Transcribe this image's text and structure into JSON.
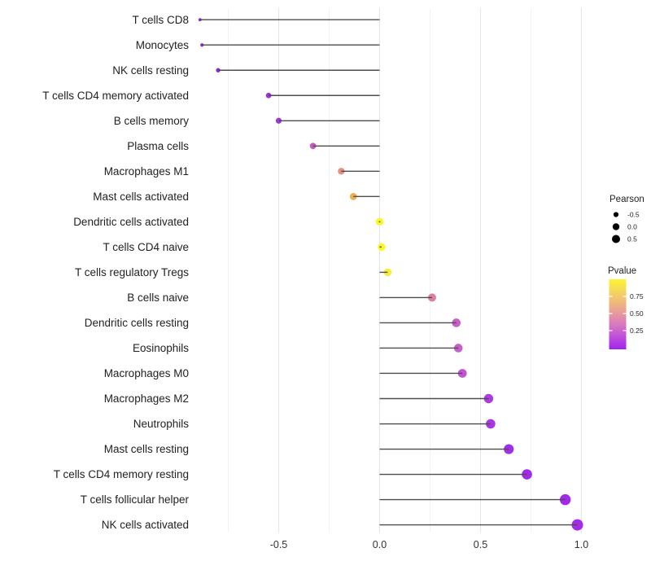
{
  "chart_data": {
    "type": "scatter",
    "subtype": "horizontal-lollipop",
    "title": "",
    "xlabel": "",
    "ylabel": "",
    "xlim": [
      -0.98,
      1.07
    ],
    "grid": "vertical-only",
    "x_major_ticks": [
      -0.5,
      0.0,
      0.5,
      1.0
    ],
    "x_tick_labels": [
      "-0.5",
      "0.0",
      "0.5",
      "1.0"
    ],
    "x_minor_ticks": [
      -0.75,
      -0.25,
      0.25,
      0.75
    ],
    "points": [
      {
        "label": "T cells CD8",
        "pearson": -0.89,
        "dot_color": "#8a26d6",
        "dot_r": 1.9
      },
      {
        "label": "Monocytes",
        "pearson": -0.88,
        "dot_color": "#8a26d6",
        "dot_r": 2.1
      },
      {
        "label": "NK cells resting",
        "pearson": -0.8,
        "dot_color": "#9029da",
        "dot_r": 2.7
      },
      {
        "label": "T cells CD4 memory activated",
        "pearson": -0.55,
        "dot_color": "#9a33dc",
        "dot_r": 3.4
      },
      {
        "label": "B cells memory",
        "pearson": -0.5,
        "dot_color": "#9d36db",
        "dot_r": 3.6
      },
      {
        "label": "Plasma cells",
        "pearson": -0.33,
        "dot_color": "#c75bbb",
        "dot_r": 3.9
      },
      {
        "label": "Macrophages M1",
        "pearson": -0.19,
        "dot_color": "#e6907e",
        "dot_r": 4.2
      },
      {
        "label": "Mast cells activated",
        "pearson": -0.13,
        "dot_color": "#ebb151",
        "dot_r": 4.4
      },
      {
        "label": "Dendritic cells activated",
        "pearson": 0.0,
        "dot_color": "#fbf724",
        "dot_r": 4.7
      },
      {
        "label": "T cells CD4 naive",
        "pearson": 0.01,
        "dot_color": "#fbf724",
        "dot_r": 4.7
      },
      {
        "label": "T cells regulatory  Tregs",
        "pearson": 0.04,
        "dot_color": "#f7ee3b",
        "dot_r": 4.8
      },
      {
        "label": "B cells naive",
        "pearson": 0.26,
        "dot_color": "#dd7f9e",
        "dot_r": 5.0
      },
      {
        "label": "Dendritic cells resting",
        "pearson": 0.38,
        "dot_color": "#c65ec6",
        "dot_r": 5.3
      },
      {
        "label": "Eosinophils",
        "pearson": 0.39,
        "dot_color": "#c75fc8",
        "dot_r": 5.3
      },
      {
        "label": "Macrophages M0",
        "pearson": 0.41,
        "dot_color": "#c254ce",
        "dot_r": 5.4
      },
      {
        "label": "Macrophages M2",
        "pearson": 0.54,
        "dot_color": "#ae3be0",
        "dot_r": 5.7
      },
      {
        "label": "Neutrophils",
        "pearson": 0.55,
        "dot_color": "#ab35e2",
        "dot_r": 5.8
      },
      {
        "label": "Mast cells resting",
        "pearson": 0.64,
        "dot_color": "#a030e6",
        "dot_r": 6.1
      },
      {
        "label": "T cells CD4 memory resting",
        "pearson": 0.73,
        "dot_color": "#a02bea",
        "dot_r": 6.3
      },
      {
        "label": "T cells follicular helper",
        "pearson": 0.92,
        "dot_color": "#a228ec",
        "dot_r": 6.7
      },
      {
        "label": "NK cells activated",
        "pearson": 0.98,
        "dot_color": "#a32ce8",
        "dot_r": 7.0
      }
    ],
    "legend_size": {
      "title": "Pearson",
      "entries": [
        {
          "label": "-0.5",
          "r": 3.1
        },
        {
          "label": "0.0",
          "r": 4.2
        },
        {
          "label": "0.5",
          "r": 5.0
        }
      ],
      "dot_color": "#000000"
    },
    "legend_color": {
      "title": "Pvalue",
      "tick_labels": [
        "0.75",
        "0.50",
        "0.25"
      ],
      "gradient_top_to_bottom": [
        "#fcf431",
        "#f5d75c",
        "#efb87b",
        "#e697a0",
        "#d674c4",
        "#bc4bdc",
        "#a124ee"
      ]
    },
    "colors": {
      "stem": "#4d4d4d",
      "grid_major": "#e4e4e4",
      "grid_minor": "#f3f3f3",
      "axis_text": "#333333",
      "label_text": "#222222",
      "background": "#ffffff"
    }
  }
}
